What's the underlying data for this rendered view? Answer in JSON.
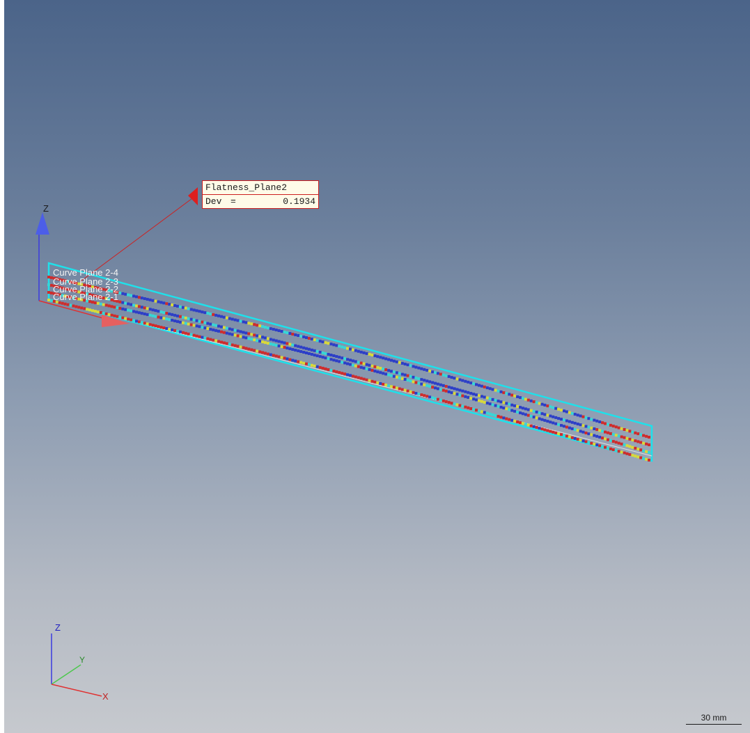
{
  "viewport": {
    "background": "#4b6489"
  },
  "callout": {
    "title": "Flatness_Plane2",
    "key": "Dev",
    "eq": "=",
    "value": "0.1934"
  },
  "curve_labels": [
    "Curve Plane 2-4",
    "Curve Plane 2-3",
    "Curve Plane 2-2",
    "Curve Plane 2-1"
  ],
  "axes": {
    "x": "X",
    "y": "Y",
    "z": "Z"
  },
  "scale": "30 mm",
  "colors": {
    "deviation_low": "#2d3fc7",
    "deviation_mid_low": "#37d6d6",
    "deviation_mid": "#d9d93a",
    "deviation_high": "#cf2c2c",
    "frame": "#1fe0ea",
    "axis_x": "#e03030",
    "axis_y": "#4cc84c",
    "axis_z": "#3a3ae0"
  },
  "icons": [
    "triad-icon",
    "z-arrow-icon",
    "x-arrow-icon"
  ]
}
